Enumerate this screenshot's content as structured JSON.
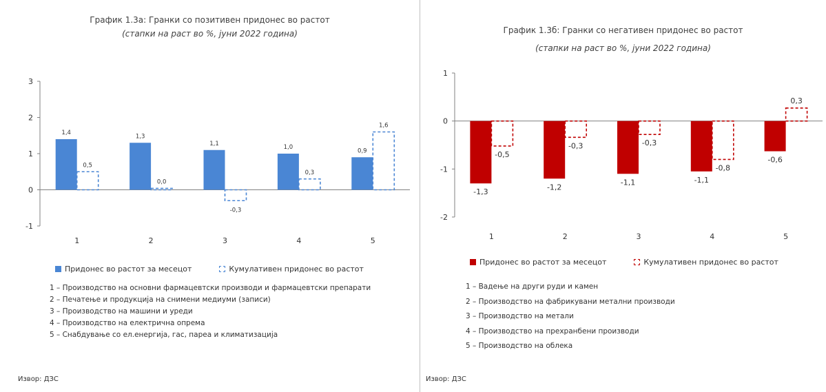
{
  "chart_data": [
    {
      "type": "bar",
      "title": "График 1.3а: Гранки со позитивен придонес во растот",
      "subtitle": "(стапки на раст во %, јуни 2022 година)",
      "categories": [
        "1",
        "2",
        "3",
        "4",
        "5"
      ],
      "ylim": [
        -1,
        3
      ],
      "yticks": [
        3,
        2,
        1,
        0,
        -1
      ],
      "series": [
        {
          "name": "Придонес во растот за месецот",
          "values": [
            1.4,
            1.3,
            1.1,
            1.0,
            0.9
          ],
          "labels": [
            "1,4",
            "1,3",
            "1,1",
            "1,0",
            "0,9"
          ],
          "color": "#4a86d4",
          "style": "solid"
        },
        {
          "name": "Кумулативен придонес во растот",
          "values": [
            0.5,
            0.04,
            -0.3,
            0.3,
            1.6
          ],
          "labels": [
            "0,5",
            "0,0",
            "-0,3",
            "0,3",
            "1,6"
          ],
          "color": "#4a86d4",
          "style": "dashed"
        }
      ],
      "notes": [
        "1 – Производство на основни фармацевтски производи и фармацевтски препарати",
        "2 – Печатење и продукција на снимени медиуми (записи)",
        "3 – Производство на машини и уреди",
        "4 – Производство на електрична опрема",
        "5 – Снабдување со ел.енергија, гас, пареа и климатизација"
      ],
      "source": "Извор: ДЗС"
    },
    {
      "type": "bar",
      "title": "График 1.3б: Гранки со негативен придонес во растот",
      "subtitle": "(стапки на раст во %, јуни 2022 година)",
      "categories": [
        "1",
        "2",
        "3",
        "4",
        "5"
      ],
      "ylim": [
        -2,
        1
      ],
      "yticks": [
        1,
        0,
        -1,
        -2
      ],
      "series": [
        {
          "name": "Придонес во растот за месецот",
          "values": [
            -1.3,
            -1.2,
            -1.1,
            -1.05,
            -0.63
          ],
          "labels": [
            "-1,3",
            "-1,2",
            "-1,1",
            "-1,1",
            "-0,6"
          ],
          "color": "#c00000",
          "style": "solid"
        },
        {
          "name": "Кумулативен придонес во растот",
          "values": [
            -0.52,
            -0.34,
            -0.28,
            -0.8,
            0.27
          ],
          "labels": [
            "-0,5",
            "-0,3",
            "-0,3",
            "-0,8",
            "0,3"
          ],
          "color": "#c00000",
          "style": "dashed"
        }
      ],
      "notes": [
        "1 – Вадење на други руди и камен",
        "2 – Производство на фабрикувани метални производи",
        "3 – Производство на метали",
        "4 – Производство на прехранбени производи",
        "5 – Производство на облека"
      ],
      "source": "Извор: ДЗС"
    }
  ]
}
